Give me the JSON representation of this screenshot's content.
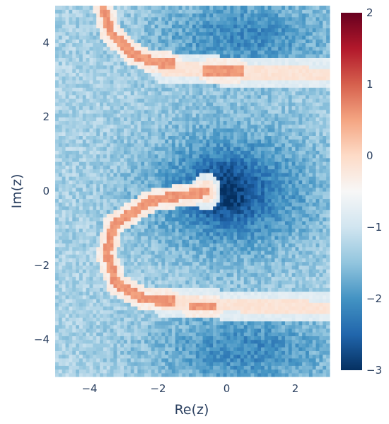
{
  "chart_data": {
    "type": "heatmap",
    "title": "",
    "xlabel": "Re(z)",
    "ylabel": "Im(z)",
    "xlim": [
      -5,
      3
    ],
    "ylim": [
      -5,
      5
    ],
    "xticks": [
      -4,
      -2,
      0,
      2
    ],
    "xtick_labels": [
      "−4",
      "−2",
      "0",
      "2"
    ],
    "yticks": [
      4,
      2,
      0,
      -2,
      -4
    ],
    "ytick_labels": [
      "4",
      "2",
      "0",
      "−2",
      "−4"
    ],
    "colorbar": {
      "range": [
        -3,
        2
      ],
      "ticks": [
        2,
        1,
        0,
        -1,
        -2,
        -3
      ],
      "tick_labels": [
        "2",
        "1",
        "0",
        "−1",
        "−2",
        "−3"
      ],
      "colorscale": [
        "#053061",
        "#2166ac",
        "#4393c3",
        "#92c5de",
        "#d1e5f0",
        "#f7f7f7",
        "#fddbc7",
        "#f4a582",
        "#d6604d",
        "#b2182b",
        "#67001f"
      ]
    },
    "grid": {
      "nx": 80,
      "ny": 100,
      "x_range": [
        -5,
        3
      ],
      "y_range": [
        -5,
        5
      ]
    },
    "features": {
      "background_level": -1.3,
      "low_region_centers": [
        [
          0,
          0
        ],
        [
          0,
          3.9
        ],
        [
          0,
          -4
        ]
      ],
      "minimum_value": -2.9,
      "high_contours": [
        {
          "description": "upper arc",
          "points": [
            [
              -3.6,
              5.0
            ],
            [
              -3.4,
              4.3
            ],
            [
              -2.8,
              3.75
            ],
            [
              -2.2,
              3.5
            ],
            [
              -1.6,
              3.45
            ]
          ]
        },
        {
          "description": "upper segment",
          "points": [
            [
              -0.6,
              3.25
            ],
            [
              0.4,
              3.25
            ]
          ]
        },
        {
          "description": "lower arc",
          "points": [
            [
              -0.6,
              0.0
            ],
            [
              -2.2,
              -0.25
            ],
            [
              -3.3,
              -0.9
            ],
            [
              -3.5,
              -1.7
            ],
            [
              -3.2,
              -2.5
            ],
            [
              -2.4,
              -2.9
            ],
            [
              -1.6,
              -2.95
            ]
          ]
        },
        {
          "description": "lower segment",
          "points": [
            [
              -1.0,
              -3.1
            ],
            [
              -0.4,
              -3.1
            ]
          ]
        }
      ],
      "white_bands": [
        {
          "description": "upper band",
          "points": [
            [
              -1.8,
              3.3
            ],
            [
              3.0,
              3.15
            ]
          ]
        },
        {
          "description": "lower band",
          "points": [
            [
              -1.8,
              -3.0
            ],
            [
              3.0,
              -3.15
            ]
          ]
        },
        {
          "description": "center tick",
          "points": [
            [
              -0.6,
              -0.1
            ],
            [
              -0.6,
              0.1
            ]
          ]
        }
      ]
    }
  }
}
